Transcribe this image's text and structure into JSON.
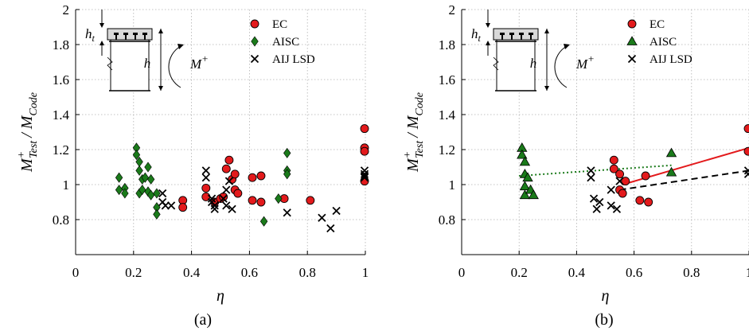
{
  "chart_data": [
    {
      "type": "scatter",
      "panel_label": "(a)",
      "xlabel": "η",
      "ylabel_main": "M",
      "ylabel_sup": "+",
      "ylabel_sub": "Test",
      "ylabel_den_main": "/ M",
      "ylabel_den_sub": "Code",
      "xlim": [
        0,
        1
      ],
      "ylim": [
        0.6,
        2
      ],
      "xticks": [
        "0",
        "0.2",
        "0.4",
        "0.6",
        "0.8",
        "1"
      ],
      "yticks": [
        "0.8",
        "1",
        "1.2",
        "1.4",
        "1.6",
        "1.8",
        "2"
      ],
      "xtick_values": [
        0,
        0.2,
        0.4,
        0.6,
        0.8,
        1
      ],
      "ytick_values": [
        0.8,
        1,
        1.2,
        1.4,
        1.6,
        1.8,
        2
      ],
      "grid": true,
      "legend_position": "top-right",
      "inset": {
        "ht_label": "h",
        "ht_sub": "t",
        "h_label": "h",
        "m_label": "M",
        "m_sup": "+"
      },
      "series": [
        {
          "name": "EC",
          "marker": "circle",
          "color": "#e31a1c",
          "points": [
            [
              0.37,
              0.91
            ],
            [
              0.37,
              0.87
            ],
            [
              0.45,
              0.98
            ],
            [
              0.45,
              0.93
            ],
            [
              0.48,
              0.9
            ],
            [
              0.5,
              0.92
            ],
            [
              0.51,
              0.93
            ],
            [
              0.52,
              1.09
            ],
            [
              0.53,
              1.14
            ],
            [
              0.54,
              1.03
            ],
            [
              0.55,
              1.06
            ],
            [
              0.55,
              0.97
            ],
            [
              0.56,
              0.95
            ],
            [
              0.61,
              1.04
            ],
            [
              0.61,
              0.91
            ],
            [
              0.64,
              1.05
            ],
            [
              0.64,
              0.9
            ],
            [
              0.72,
              0.92
            ],
            [
              0.81,
              0.91
            ],
            [
              1.0,
              1.32
            ],
            [
              1.0,
              1.21
            ],
            [
              1.0,
              1.19
            ],
            [
              1.0,
              1.02
            ]
          ]
        },
        {
          "name": "AISC",
          "marker": "diamond",
          "color": "#1a7a1a",
          "points": [
            [
              0.15,
              1.04
            ],
            [
              0.15,
              0.97
            ],
            [
              0.17,
              0.98
            ],
            [
              0.17,
              0.95
            ],
            [
              0.21,
              1.21
            ],
            [
              0.21,
              1.17
            ],
            [
              0.22,
              1.13
            ],
            [
              0.22,
              1.08
            ],
            [
              0.22,
              0.95
            ],
            [
              0.23,
              1.03
            ],
            [
              0.23,
              0.97
            ],
            [
              0.24,
              1.04
            ],
            [
              0.25,
              1.1
            ],
            [
              0.25,
              0.96
            ],
            [
              0.26,
              1.03
            ],
            [
              0.26,
              0.94
            ],
            [
              0.28,
              0.95
            ],
            [
              0.28,
              0.87
            ],
            [
              0.28,
              0.83
            ],
            [
              0.65,
              0.79
            ],
            [
              0.7,
              0.92
            ],
            [
              0.73,
              1.18
            ],
            [
              0.73,
              1.08
            ],
            [
              0.73,
              1.06
            ]
          ]
        },
        {
          "name": "AIJ LSD",
          "marker": "x",
          "color": "#000000",
          "points": [
            [
              0.3,
              0.95
            ],
            [
              0.3,
              0.9
            ],
            [
              0.31,
              0.88
            ],
            [
              0.33,
              0.88
            ],
            [
              0.45,
              1.08
            ],
            [
              0.45,
              1.04
            ],
            [
              0.47,
              0.92
            ],
            [
              0.47,
              0.9
            ],
            [
              0.48,
              0.88
            ],
            [
              0.48,
              0.86
            ],
            [
              0.51,
              0.92
            ],
            [
              0.52,
              0.97
            ],
            [
              0.52,
              0.88
            ],
            [
              0.53,
              1.02
            ],
            [
              0.54,
              0.86
            ],
            [
              0.73,
              0.84
            ],
            [
              0.85,
              0.81
            ],
            [
              0.88,
              0.75
            ],
            [
              0.9,
              0.85
            ],
            [
              1.0,
              1.08
            ],
            [
              1.0,
              1.06
            ],
            [
              1.0,
              1.05
            ],
            [
              1.0,
              1.04
            ]
          ]
        }
      ]
    },
    {
      "type": "scatter",
      "panel_label": "(b)",
      "xlabel": "η",
      "ylabel_main": "M",
      "ylabel_sup": "+",
      "ylabel_sub": "Test",
      "ylabel_den_main": "/ M",
      "ylabel_den_sub": "Code",
      "xlim": [
        0,
        1
      ],
      "ylim": [
        0.6,
        2
      ],
      "xticks": [
        "0",
        "0.2",
        "0.4",
        "0.6",
        "0.8",
        "1"
      ],
      "yticks": [
        "0.8",
        "1",
        "1.2",
        "1.4",
        "1.6",
        "1.8",
        "2"
      ],
      "xtick_values": [
        0,
        0.2,
        0.4,
        0.6,
        0.8,
        1
      ],
      "ytick_values": [
        0.8,
        1,
        1.2,
        1.4,
        1.6,
        1.8,
        2
      ],
      "grid": true,
      "legend_position": "top-right",
      "inset": {
        "ht_label": "h",
        "ht_sub": "t",
        "h_label": "h",
        "m_label": "M",
        "m_sup": "+"
      },
      "series": [
        {
          "name": "EC",
          "marker": "circle",
          "color": "#e31a1c",
          "points": [
            [
              0.53,
              1.14
            ],
            [
              0.53,
              1.09
            ],
            [
              0.55,
              1.06
            ],
            [
              0.55,
              0.97
            ],
            [
              0.56,
              0.95
            ],
            [
              0.57,
              1.02
            ],
            [
              0.62,
              0.91
            ],
            [
              0.64,
              1.05
            ],
            [
              0.65,
              0.9
            ],
            [
              1.0,
              1.32
            ],
            [
              1.0,
              1.19
            ]
          ]
        },
        {
          "name": "AISC",
          "marker": "triangle",
          "color": "#1a7a1a",
          "points": [
            [
              0.21,
              1.21
            ],
            [
              0.21,
              1.17
            ],
            [
              0.22,
              1.13
            ],
            [
              0.22,
              1.06
            ],
            [
              0.22,
              0.99
            ],
            [
              0.22,
              0.94
            ],
            [
              0.23,
              1.04
            ],
            [
              0.24,
              0.97
            ],
            [
              0.25,
              0.94
            ],
            [
              0.73,
              1.18
            ],
            [
              0.73,
              1.07
            ]
          ]
        },
        {
          "name": "AIJ LSD",
          "marker": "x",
          "color": "#000000",
          "points": [
            [
              0.45,
              1.08
            ],
            [
              0.45,
              1.04
            ],
            [
              0.46,
              0.92
            ],
            [
              0.47,
              0.86
            ],
            [
              0.48,
              0.9
            ],
            [
              0.52,
              0.97
            ],
            [
              0.52,
              0.88
            ],
            [
              0.54,
              0.86
            ],
            [
              0.55,
              1.02
            ],
            [
              1.0,
              1.08
            ],
            [
              1.0,
              1.06
            ]
          ]
        }
      ],
      "trend_lines": [
        {
          "series": "EC",
          "style": "solid",
          "color": "#e31a1c",
          "x": [
            0.56,
            1.0
          ],
          "y": [
            1.0,
            1.21
          ]
        },
        {
          "series": "AISC",
          "style": "dotted",
          "color": "#1a7a1a",
          "x": [
            0.2,
            0.73
          ],
          "y": [
            1.05,
            1.11
          ]
        },
        {
          "series": "AIJ LSD",
          "style": "dashed",
          "color": "#000000",
          "x": [
            0.55,
            1.0
          ],
          "y": [
            0.97,
            1.08
          ]
        }
      ]
    }
  ]
}
